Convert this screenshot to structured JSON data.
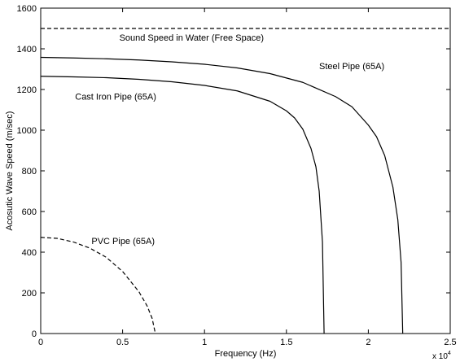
{
  "chart_data": {
    "type": "line",
    "title": "",
    "xlabel": "Frequency (Hz)",
    "ylabel": "Acosutic Wave Speed (m/sec)",
    "x_exponent_label": "x 10",
    "x_exponent_power": "4",
    "xlim": [
      0,
      25000
    ],
    "ylim": [
      0,
      1600
    ],
    "xticks": [
      0,
      5000,
      10000,
      15000,
      20000,
      25000
    ],
    "xtick_labels": [
      "0",
      "0.5",
      "1",
      "1.5",
      "2",
      "2.5"
    ],
    "yticks": [
      0,
      200,
      400,
      600,
      800,
      1000,
      1200,
      1400,
      1600
    ],
    "ytick_labels": [
      "0",
      "200",
      "400",
      "600",
      "800",
      "1000",
      "1200",
      "1400",
      "1600"
    ],
    "grid": false,
    "line_color": "#000000",
    "series": [
      {
        "name": "Sound Speed in Water (Free Space)",
        "style": "dashed",
        "x": [
          0,
          25000
        ],
        "y": [
          1500,
          1500
        ]
      },
      {
        "name": "Steel Pipe (65A)",
        "style": "solid",
        "x": [
          0,
          2000,
          4000,
          6000,
          8000,
          10000,
          12000,
          14000,
          16000,
          18000,
          19000,
          20000,
          20500,
          21000,
          21500,
          21800,
          22000,
          22100
        ],
        "y": [
          1358,
          1355,
          1351,
          1345,
          1336,
          1324,
          1306,
          1278,
          1235,
          1165,
          1115,
          1025,
          968,
          875,
          720,
          560,
          350,
          0
        ]
      },
      {
        "name": "Cast Iron Pipe (65A)",
        "style": "solid",
        "x": [
          0,
          2000,
          4000,
          6000,
          8000,
          10000,
          12000,
          14000,
          15000,
          15500,
          16000,
          16500,
          16800,
          17000,
          17200,
          17300
        ],
        "y": [
          1265,
          1262,
          1258,
          1250,
          1238,
          1220,
          1193,
          1142,
          1095,
          1060,
          1005,
          910,
          820,
          700,
          450,
          0
        ]
      },
      {
        "name": "PVC Pipe (65A)",
        "style": "dashed",
        "x": [
          0,
          1000,
          2000,
          3000,
          4000,
          5000,
          6000,
          6500,
          6800,
          7000
        ],
        "y": [
          473,
          468,
          450,
          420,
          375,
          305,
          205,
          135,
          75,
          0
        ]
      }
    ],
    "annotations": [
      {
        "text": "Sound Speed in Water (Free Space)",
        "x": 4800,
        "y": 1440
      },
      {
        "text": "Steel Pipe (65A)",
        "x": 17000,
        "y": 1300
      },
      {
        "text": "Cast Iron Pipe (65A)",
        "x": 2100,
        "y": 1150
      },
      {
        "text": "PVC Pipe (65A)",
        "x": 3100,
        "y": 440
      }
    ]
  }
}
